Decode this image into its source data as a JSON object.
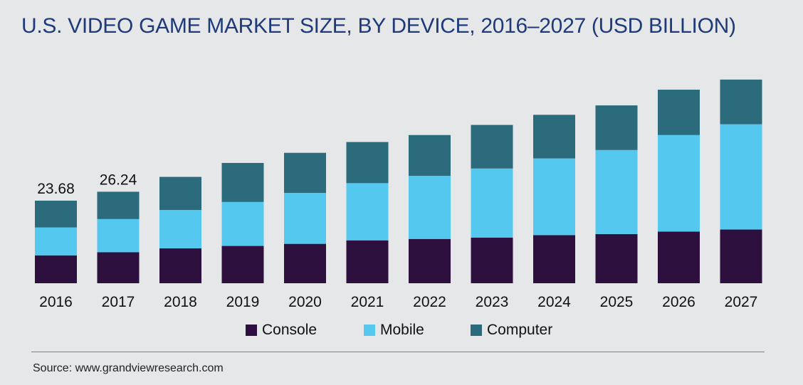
{
  "title": "U.S. VIDEO GAME MARKET SIZE, BY DEVICE, 2016–2027 (USD BILLION)",
  "source": "Source: www.grandviewresearch.com",
  "colors": {
    "console": "#2d103d",
    "mobile": "#55c8f0",
    "computer": "#2c6b7c",
    "background": "#e6e7e8",
    "title": "#1f3a7a"
  },
  "chart_data": {
    "type": "bar",
    "stacked": true,
    "title": "U.S. VIDEO GAME MARKET SIZE, BY DEVICE, 2016–2027 (USD BILLION)",
    "categories": [
      "2016",
      "2017",
      "2018",
      "2019",
      "2020",
      "2021",
      "2022",
      "2023",
      "2024",
      "2025",
      "2026",
      "2027"
    ],
    "series": [
      {
        "name": "Console",
        "color": "#2d103d",
        "values": [
          8.0,
          8.9,
          10.0,
          10.7,
          11.3,
          12.3,
          12.7,
          13.1,
          13.8,
          14.1,
          14.8,
          15.4
        ]
      },
      {
        "name": "Mobile",
        "color": "#55c8f0",
        "values": [
          8.0,
          9.5,
          11.0,
          12.6,
          14.6,
          16.4,
          18.1,
          19.8,
          22.0,
          24.1,
          27.7,
          30.2
        ]
      },
      {
        "name": "Computer",
        "color": "#2c6b7c",
        "values": [
          7.68,
          7.84,
          9.5,
          11.2,
          11.5,
          11.8,
          11.7,
          12.5,
          12.5,
          12.8,
          13.0,
          12.8
        ]
      }
    ],
    "totals_labels": [
      {
        "index": 0,
        "text": "23.68"
      },
      {
        "index": 1,
        "text": "26.24"
      }
    ],
    "legend": [
      "Console",
      "Mobile",
      "Computer"
    ],
    "legend_position": "bottom",
    "grid": false,
    "ylim": [
      0,
      60
    ]
  }
}
